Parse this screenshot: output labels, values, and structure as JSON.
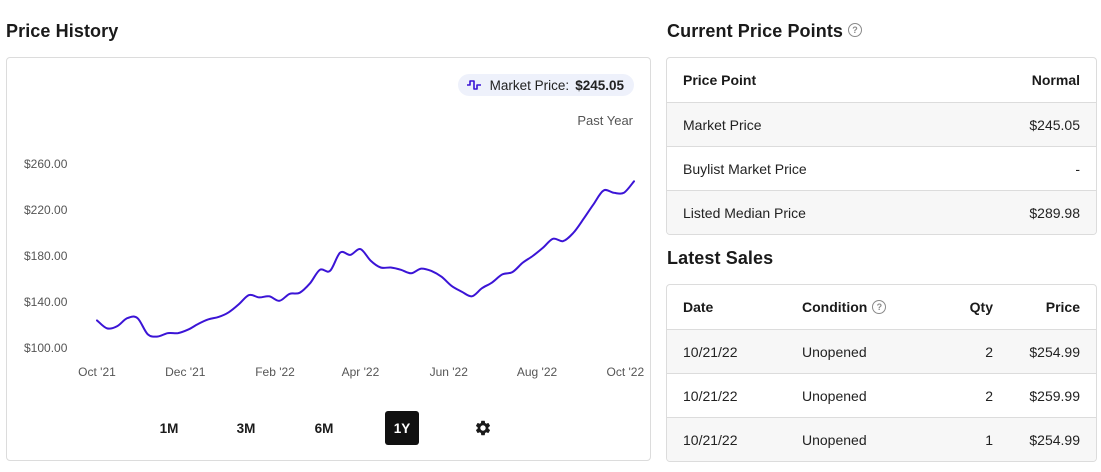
{
  "price_history": {
    "title": "Price History",
    "market_price_label": "Market Price:",
    "market_price_value": "$245.05",
    "range_label": "Past Year",
    "range_buttons": [
      "1M",
      "3M",
      "6M",
      "1Y"
    ],
    "active_range": "1Y",
    "settings_icon": "gear-icon",
    "accent_color": "#3b14d6"
  },
  "current_price_points": {
    "title": "Current Price Points",
    "headers": [
      "Price Point",
      "Normal"
    ],
    "rows": [
      [
        "Market Price",
        "$245.05"
      ],
      [
        "Buylist Market Price",
        "-"
      ],
      [
        "Listed Median Price",
        "$289.98"
      ]
    ]
  },
  "latest_sales": {
    "title": "Latest Sales",
    "headers": [
      "Date",
      "Condition",
      "Qty",
      "Price"
    ],
    "rows": [
      [
        "10/21/22",
        "Unopened",
        "2",
        "$254.99"
      ],
      [
        "10/21/22",
        "Unopened",
        "2",
        "$259.99"
      ],
      [
        "10/21/22",
        "Unopened",
        "1",
        "$254.99"
      ]
    ]
  },
  "chart_data": {
    "type": "line",
    "title": "",
    "xlabel": "",
    "ylabel": "",
    "x_ticks": [
      "Oct '21",
      "Dec '21",
      "Feb '22",
      "Apr '22",
      "Jun '22",
      "Aug '22",
      "Oct '22"
    ],
    "y_ticks": [
      "$100.00",
      "$140.00",
      "$180.00",
      "$220.00",
      "$260.00"
    ],
    "ylim": [
      100,
      260
    ],
    "grid": false,
    "series": [
      {
        "name": "Market Price",
        "color": "#3b14d6",
        "points": [
          [
            "2021-10-01",
            124
          ],
          [
            "2021-10-08",
            117
          ],
          [
            "2021-10-15",
            119
          ],
          [
            "2021-10-22",
            126
          ],
          [
            "2021-10-29",
            126
          ],
          [
            "2021-11-05",
            112
          ],
          [
            "2021-11-12",
            110
          ],
          [
            "2021-11-19",
            113
          ],
          [
            "2021-11-26",
            113
          ],
          [
            "2021-12-03",
            116
          ],
          [
            "2021-12-10",
            121
          ],
          [
            "2021-12-17",
            125
          ],
          [
            "2021-12-24",
            127
          ],
          [
            "2021-12-31",
            131
          ],
          [
            "2022-01-07",
            138
          ],
          [
            "2022-01-14",
            146
          ],
          [
            "2022-01-21",
            144
          ],
          [
            "2022-01-28",
            145
          ],
          [
            "2022-02-04",
            141
          ],
          [
            "2022-02-11",
            147
          ],
          [
            "2022-02-18",
            148
          ],
          [
            "2022-02-25",
            156
          ],
          [
            "2022-03-04",
            168
          ],
          [
            "2022-03-11",
            167
          ],
          [
            "2022-03-18",
            183
          ],
          [
            "2022-03-25",
            181
          ],
          [
            "2022-04-01",
            186
          ],
          [
            "2022-04-08",
            176
          ],
          [
            "2022-04-15",
            170
          ],
          [
            "2022-04-22",
            170
          ],
          [
            "2022-04-29",
            168
          ],
          [
            "2022-05-06",
            165
          ],
          [
            "2022-05-13",
            169
          ],
          [
            "2022-05-20",
            167
          ],
          [
            "2022-05-27",
            162
          ],
          [
            "2022-06-03",
            154
          ],
          [
            "2022-06-10",
            149
          ],
          [
            "2022-06-17",
            145
          ],
          [
            "2022-06-24",
            152
          ],
          [
            "2022-07-01",
            157
          ],
          [
            "2022-07-08",
            164
          ],
          [
            "2022-07-15",
            166
          ],
          [
            "2022-07-22",
            174
          ],
          [
            "2022-07-29",
            180
          ],
          [
            "2022-08-05",
            187
          ],
          [
            "2022-08-12",
            195
          ],
          [
            "2022-08-19",
            193
          ],
          [
            "2022-08-26",
            200
          ],
          [
            "2022-09-02",
            212
          ],
          [
            "2022-09-09",
            225
          ],
          [
            "2022-09-16",
            237
          ],
          [
            "2022-09-23",
            235
          ],
          [
            "2022-09-30",
            235
          ],
          [
            "2022-10-07",
            245
          ]
        ]
      }
    ]
  }
}
